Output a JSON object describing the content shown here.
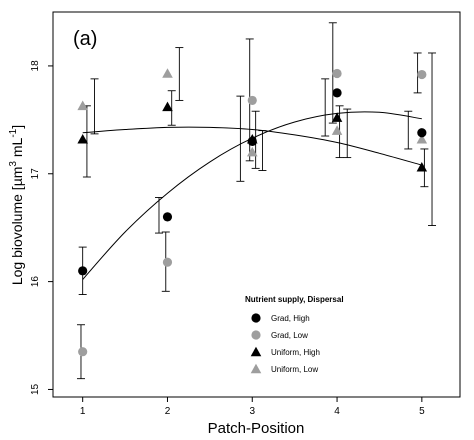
{
  "chart_data": {
    "type": "scatter",
    "panel_label": "(a)",
    "xlabel": "Patch-Position",
    "ylabel_main": "Log biovolume [µm",
    "ylabel_sup1": "3",
    "ylabel_mid": " mL",
    "ylabel_sup2": "-1",
    "ylabel_end": "]",
    "xlim": [
      0.65,
      5.45
    ],
    "ylim": [
      14.93,
      18.5
    ],
    "x_ticks": [
      1,
      2,
      3,
      4,
      5
    ],
    "y_ticks": [
      15,
      16,
      17,
      18
    ],
    "grid": false,
    "legend": {
      "title": "Nutrient supply, Dispersal",
      "position": "bottom-center",
      "entries": [
        {
          "label": "Grad, High",
          "marker": "circle",
          "color": "#000000"
        },
        {
          "label": "Grad, Low",
          "marker": "circle",
          "color": "#9e9e9e"
        },
        {
          "label": "Uniform, High",
          "marker": "triangle",
          "color": "#000000"
        },
        {
          "label": "Uniform, Low",
          "marker": "triangle",
          "color": "#9e9e9e"
        }
      ]
    },
    "series": [
      {
        "marker": "circle",
        "color": "#000000",
        "points": [
          {
            "x": 1,
            "y": 16.1
          },
          {
            "x": 2,
            "y": 16.6
          },
          {
            "x": 3,
            "y": 17.3
          },
          {
            "x": 4,
            "y": 17.75
          },
          {
            "x": 5,
            "y": 17.38
          }
        ]
      },
      {
        "marker": "circle",
        "color": "#9e9e9e",
        "points": [
          {
            "x": 1,
            "y": 15.35
          },
          {
            "x": 2,
            "y": 16.18
          },
          {
            "x": 3,
            "y": 17.68
          },
          {
            "x": 4,
            "y": 17.93
          },
          {
            "x": 5,
            "y": 17.92
          }
        ]
      },
      {
        "marker": "triangle",
        "color": "#000000",
        "points": [
          {
            "x": 1,
            "y": 17.32
          },
          {
            "x": 2,
            "y": 17.62
          },
          {
            "x": 3,
            "y": 17.32
          },
          {
            "x": 4,
            "y": 17.52
          },
          {
            "x": 5,
            "y": 17.06
          }
        ]
      },
      {
        "marker": "triangle",
        "color": "#9e9e9e",
        "points": [
          {
            "x": 1,
            "y": 17.63
          },
          {
            "x": 2,
            "y": 17.93
          },
          {
            "x": 3,
            "y": 17.2
          },
          {
            "x": 4,
            "y": 17.4
          },
          {
            "x": 5,
            "y": 17.32
          }
        ]
      }
    ],
    "error_bars": [
      {
        "x": 1.0,
        "lo": 15.88,
        "hi": 16.32
      },
      {
        "x": 0.98,
        "lo": 15.1,
        "hi": 15.6
      },
      {
        "x": 1.05,
        "lo": 16.97,
        "hi": 17.63
      },
      {
        "x": 1.14,
        "lo": 17.37,
        "hi": 17.88
      },
      {
        "x": 1.9,
        "lo": 16.45,
        "hi": 16.78
      },
      {
        "x": 1.98,
        "lo": 15.91,
        "hi": 16.46
      },
      {
        "x": 2.05,
        "lo": 17.45,
        "hi": 17.77
      },
      {
        "x": 2.14,
        "lo": 17.68,
        "hi": 18.17
      },
      {
        "x": 2.86,
        "lo": 16.93,
        "hi": 17.72
      },
      {
        "x": 2.97,
        "lo": 17.12,
        "hi": 18.25
      },
      {
        "x": 3.04,
        "lo": 17.05,
        "hi": 17.58
      },
      {
        "x": 3.12,
        "lo": 17.03,
        "hi": 17.4
      },
      {
        "x": 3.86,
        "lo": 17.35,
        "hi": 17.88
      },
      {
        "x": 3.95,
        "lo": 17.47,
        "hi": 18.4
      },
      {
        "x": 4.03,
        "lo": 17.15,
        "hi": 17.63
      },
      {
        "x": 4.12,
        "lo": 17.15,
        "hi": 17.6
      },
      {
        "x": 4.84,
        "lo": 17.23,
        "hi": 17.58
      },
      {
        "x": 4.95,
        "lo": 17.75,
        "hi": 18.12
      },
      {
        "x": 5.03,
        "lo": 16.88,
        "hi": 17.23
      },
      {
        "x": 5.12,
        "lo": 16.52,
        "hi": 18.12
      }
    ],
    "trend_lines": [
      {
        "color": "#000000",
        "points": [
          [
            1,
            16.02
          ],
          [
            1.5,
            16.46
          ],
          [
            2,
            16.82
          ],
          [
            2.5,
            17.11
          ],
          [
            3,
            17.33
          ],
          [
            3.5,
            17.48
          ],
          [
            4,
            17.56
          ],
          [
            4.5,
            17.57
          ],
          [
            5,
            17.51
          ]
        ]
      },
      {
        "color": "#000000",
        "points": [
          [
            1,
            17.38
          ],
          [
            1.5,
            17.41
          ],
          [
            2,
            17.43
          ],
          [
            2.5,
            17.43
          ],
          [
            3,
            17.41
          ],
          [
            3.5,
            17.36
          ],
          [
            4,
            17.29
          ],
          [
            4.5,
            17.19
          ],
          [
            5,
            17.08
          ]
        ]
      }
    ]
  }
}
